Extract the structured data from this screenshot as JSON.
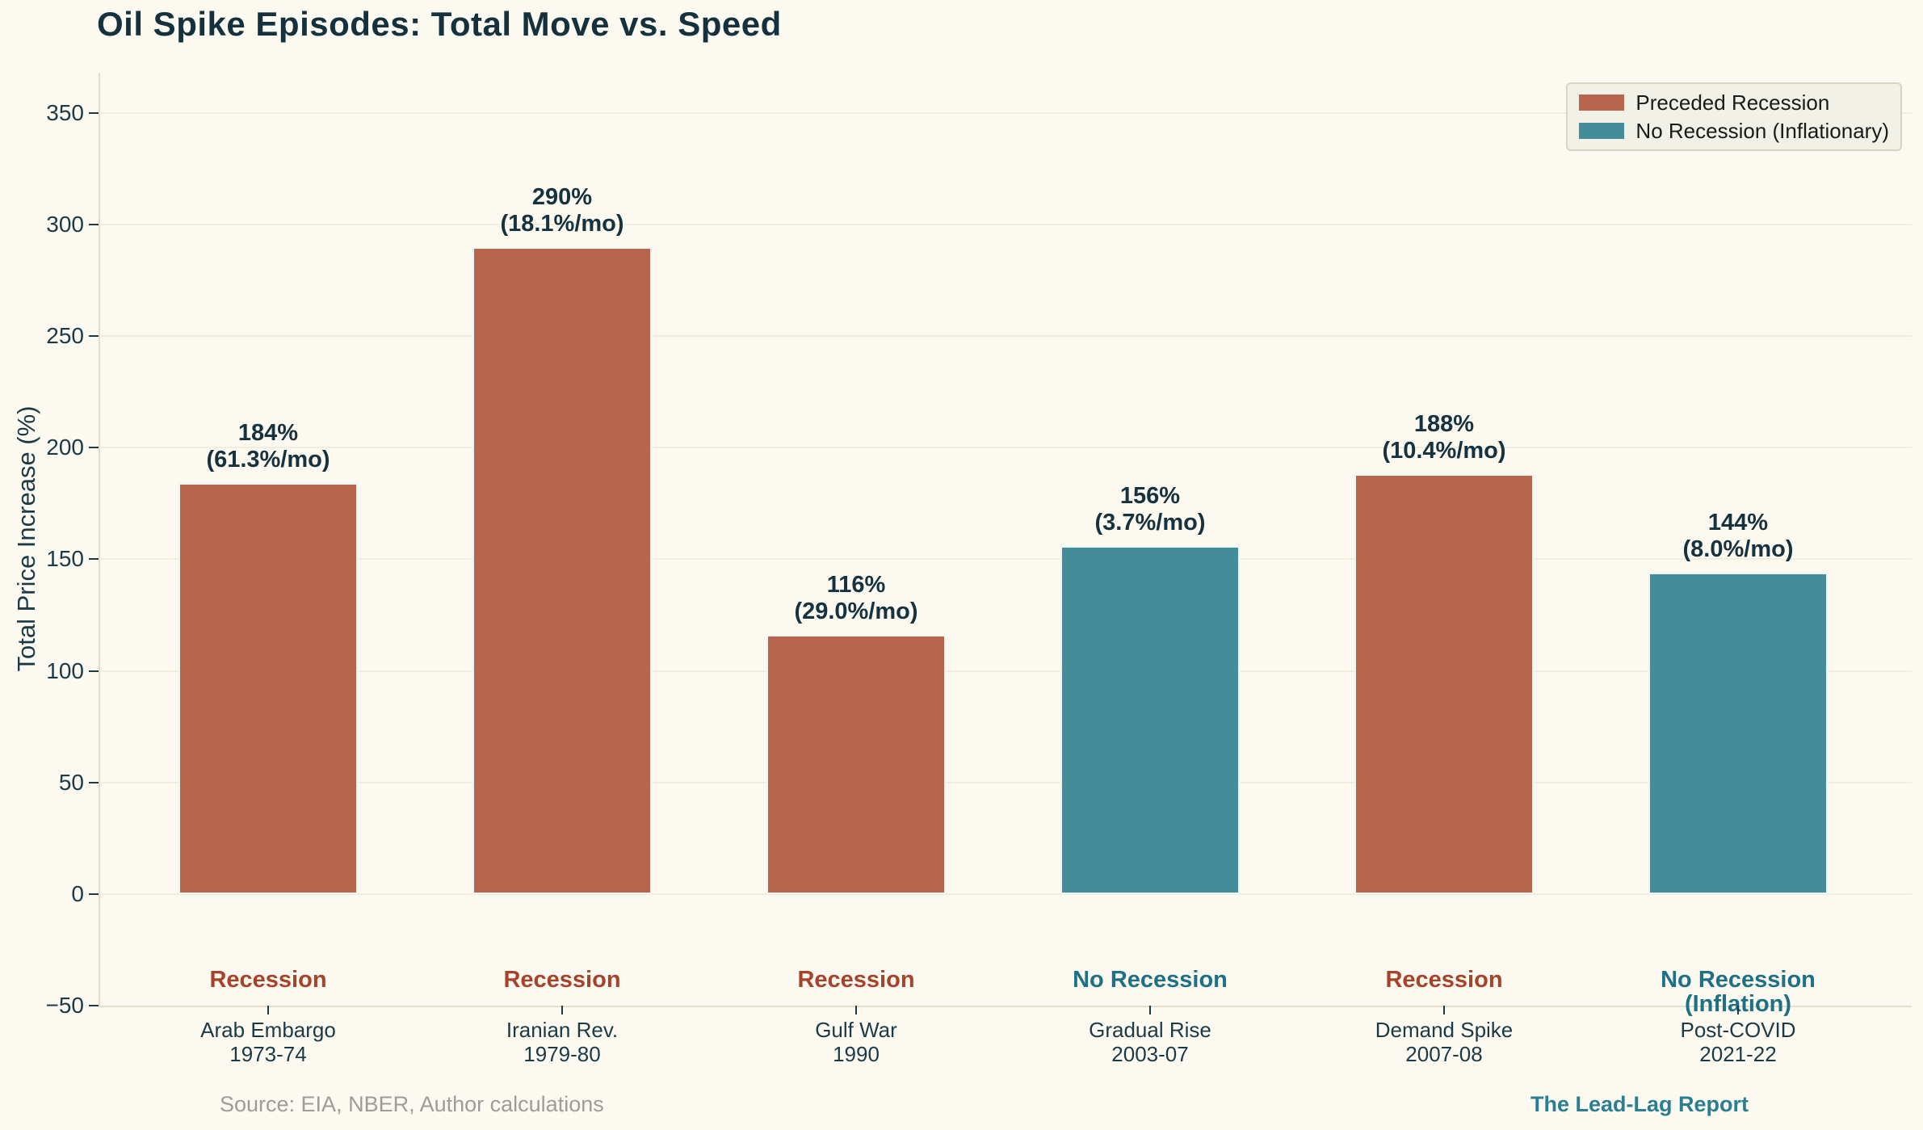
{
  "page": {
    "background": "#fbf9f0"
  },
  "header": {
    "title": "Oil Spike Episodes: Total Move vs. Speed"
  },
  "legend": {
    "items": [
      {
        "label": "Preceded Recession",
        "color": "#b8654d"
      },
      {
        "label": "No Recession (Inflationary)",
        "color": "#428d99"
      }
    ]
  },
  "footer": {
    "source": "Source: EIA, NBER, Author calculations",
    "brand": "The Lead-Lag Report"
  },
  "chart_data": {
    "type": "bar",
    "title": "Oil Spike Episodes: Total Move vs. Speed",
    "xlabel": "",
    "ylabel": "Total Price Increase (%)",
    "ylim": [
      -50,
      368
    ],
    "grid": true,
    "grid_values": [
      0,
      50,
      100,
      150,
      200,
      250,
      300,
      350
    ],
    "ytick_values": [
      350,
      300,
      250,
      200,
      150,
      100,
      50,
      0,
      -50
    ],
    "ytick_labels": [
      "350",
      "300",
      "250",
      "200",
      "150",
      "100",
      "50",
      "0",
      "−50"
    ],
    "legend_position": "upper right",
    "bars": [
      {
        "category": "Arab Embargo",
        "period": "1973-74",
        "value": 184,
        "monthly_rate_pct": 61.3,
        "value_label": "184%",
        "rate_label": "(61.3%/mo)",
        "annotation": "Recession",
        "group": "Preceded Recession",
        "color": "#b8654d",
        "annotation_color": "#a6432b"
      },
      {
        "category": "Iranian Rev.",
        "period": "1979-80",
        "value": 290,
        "monthly_rate_pct": 18.1,
        "value_label": "290%",
        "rate_label": "(18.1%/mo)",
        "annotation": "Recession",
        "group": "Preceded Recession",
        "color": "#b8654d",
        "annotation_color": "#a6432b"
      },
      {
        "category": "Gulf War",
        "period": "1990",
        "value": 116,
        "monthly_rate_pct": 29.0,
        "value_label": "116%",
        "rate_label": "(29.0%/mo)",
        "annotation": "Recession",
        "group": "Preceded Recession",
        "color": "#b8654d",
        "annotation_color": "#a6432b"
      },
      {
        "category": "Gradual Rise",
        "period": "2003-07",
        "value": 156,
        "monthly_rate_pct": 3.7,
        "value_label": "156%",
        "rate_label": "(3.7%/mo)",
        "annotation": "No Recession",
        "group": "No Recession (Inflationary)",
        "color": "#428d99",
        "annotation_color": "#1e7085"
      },
      {
        "category": "Demand Spike",
        "period": "2007-08",
        "value": 188,
        "monthly_rate_pct": 10.4,
        "value_label": "188%",
        "rate_label": "(10.4%/mo)",
        "annotation": "Recession",
        "group": "Preceded Recession",
        "color": "#b8654d",
        "annotation_color": "#a6432b"
      },
      {
        "category": "Post-COVID",
        "period": "2021-22",
        "value": 144,
        "monthly_rate_pct": 8.0,
        "value_label": "144%",
        "rate_label": "(8.0%/mo)",
        "annotation": "No Recession\n(Inflation)",
        "group": "No Recession (Inflationary)",
        "color": "#428d99",
        "annotation_color": "#1e7085"
      }
    ]
  }
}
